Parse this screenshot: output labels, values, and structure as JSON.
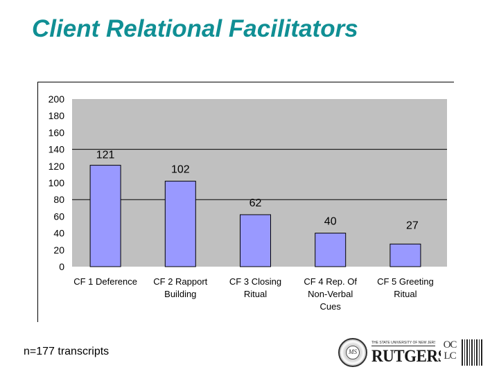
{
  "slide": {
    "title": "Client Relational Facilitators",
    "footnote": "n=177 transcripts"
  },
  "logos": {
    "seal_text": "MS",
    "university_line": "THE STATE UNIVERSITY OF NEW JERSEY",
    "university_name": "RUTGERS",
    "oclc_top": "OC",
    "oclc_bottom": "LC"
  },
  "colors": {
    "title": "#108f94",
    "bar_fill": "#9999ff",
    "plot_background": "#c0c0c0",
    "gridline": "#000000"
  },
  "chart_data": {
    "type": "bar",
    "categories": [
      [
        "CF 1 Deference"
      ],
      [
        "CF 2 Rapport",
        "Building"
      ],
      [
        "CF 3 Closing",
        "Ritual"
      ],
      [
        "CF 4 Rep. Of",
        "Non-Verbal",
        "Cues"
      ],
      [
        "CF 5 Greeting",
        "Ritual"
      ]
    ],
    "values": [
      121,
      102,
      62,
      40,
      27
    ],
    "data_labels": [
      "121",
      "102",
      "62",
      "40",
      "27"
    ],
    "ylim": [
      0,
      200
    ],
    "yticks": [
      0,
      20,
      40,
      60,
      80,
      100,
      120,
      140,
      160,
      180,
      200
    ],
    "gridlines_at": [
      80,
      140
    ],
    "legend": "none"
  }
}
